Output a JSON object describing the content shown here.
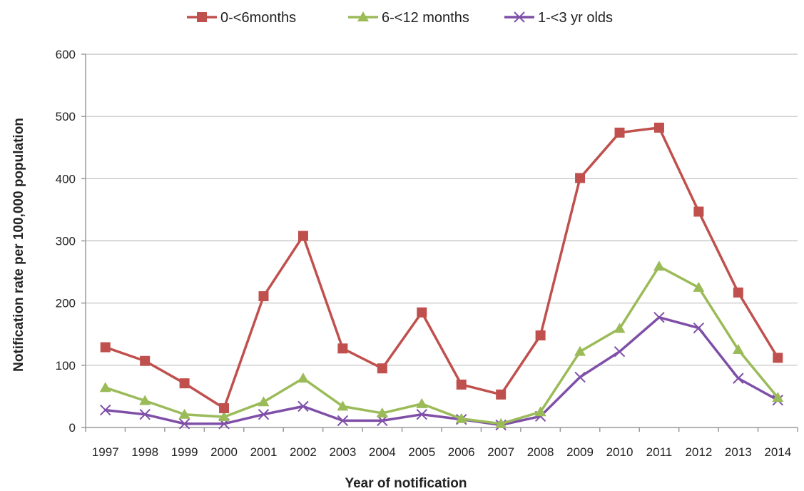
{
  "chart_data": {
    "type": "line",
    "title": "",
    "xlabel": "Year of notification",
    "ylabel": "Notification rate per 100,000  population",
    "categories": [
      "1997",
      "1998",
      "1999",
      "2000",
      "2001",
      "2002",
      "2003",
      "2004",
      "2005",
      "2006",
      "2007",
      "2008",
      "2009",
      "2010",
      "2011",
      "2012",
      "2013",
      "2014"
    ],
    "ylim": [
      0,
      600
    ],
    "yticks": [
      0,
      100,
      200,
      300,
      400,
      500,
      600
    ],
    "grid": "horizontal",
    "legend_position": "top",
    "series": [
      {
        "name": "0-<6months",
        "color": "#c0504d",
        "marker": "square",
        "values": [
          129,
          107,
          71,
          31,
          211,
          308,
          127,
          95,
          185,
          69,
          53,
          148,
          401,
          474,
          482,
          347,
          217,
          112
        ]
      },
      {
        "name": "6-<12 months",
        "color": "#9bbb59",
        "marker": "triangle",
        "values": [
          64,
          43,
          21,
          17,
          41,
          79,
          34,
          23,
          38,
          14,
          6,
          25,
          122,
          159,
          259,
          225,
          125,
          48
        ]
      },
      {
        "name": "1-<3 yr olds",
        "color": "#7f4fa8",
        "marker": "x",
        "values": [
          28,
          21,
          6,
          6,
          21,
          34,
          11,
          11,
          21,
          13,
          4,
          18,
          81,
          122,
          177,
          160,
          79,
          44
        ]
      }
    ]
  }
}
